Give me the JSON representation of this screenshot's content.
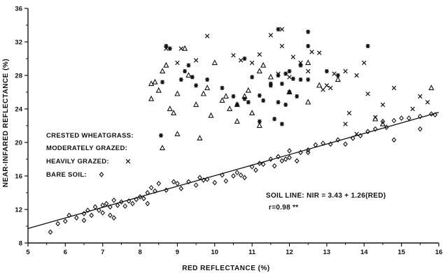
{
  "chart_data": {
    "type": "scatter",
    "xlabel": "RED REFLECTANCE (%)",
    "ylabel": "NEAR-INFARED REFLECTANCE (%)",
    "xlim": [
      5,
      16
    ],
    "ylim": [
      8,
      36
    ],
    "xticks": [
      "5",
      "6",
      "7",
      "8",
      "9",
      "10",
      "11",
      "12",
      "13",
      "14",
      "15",
      "16"
    ],
    "yticks": [
      "8",
      "12",
      "16",
      "20",
      "24",
      "28",
      "32",
      "36"
    ],
    "legend": [
      {
        "label": "CRESTED WHEATGRASS:",
        "marker": "asterisk"
      },
      {
        "label": "MODERATELY GRAZED:",
        "marker": "triangle"
      },
      {
        "label": "HEAVILY GRAZED:",
        "marker": "x"
      },
      {
        "label": "BARE SOIL:",
        "marker": "diamond"
      }
    ],
    "annotations": [
      "SOIL LINE: NIR = 3.43 + 1.26(RED)",
      "r=0.98 **"
    ],
    "fit_line": {
      "intercept": 3.43,
      "slope": 1.26,
      "x_range": [
        5,
        16
      ]
    },
    "series": [
      {
        "marker": "asterisk",
        "points": [
          [
            8.7,
            31.5
          ],
          [
            8.8,
            31.2
          ],
          [
            9.2,
            28.5
          ],
          [
            9.3,
            29.2
          ],
          [
            9.1,
            27.5
          ],
          [
            8.6,
            27.2
          ],
          [
            9.4,
            27.8
          ],
          [
            9.5,
            26.8
          ],
          [
            9.8,
            27.5
          ],
          [
            10.2,
            26.5
          ],
          [
            10.5,
            25.5
          ],
          [
            10.6,
            24.5
          ],
          [
            10.8,
            25.2
          ],
          [
            10.9,
            24.8
          ],
          [
            11.0,
            27.8
          ],
          [
            11.2,
            25.6
          ],
          [
            11.5,
            26.8
          ],
          [
            11.7,
            24.8
          ],
          [
            11.8,
            27.0
          ],
          [
            11.9,
            28.2
          ],
          [
            12.0,
            26.0
          ],
          [
            12.1,
            27.6
          ],
          [
            12.3,
            27.5
          ],
          [
            11.7,
            33.5
          ],
          [
            12.5,
            33.2
          ],
          [
            12.5,
            31.5
          ],
          [
            12.3,
            29.2
          ],
          [
            12.0,
            28.5
          ],
          [
            11.7,
            28.0
          ],
          [
            11.3,
            25.0
          ],
          [
            11.6,
            22.8
          ],
          [
            11.8,
            22.2
          ],
          [
            11.9,
            24.5
          ],
          [
            12.5,
            27.5
          ],
          [
            13.0,
            28.5
          ],
          [
            13.3,
            28.0
          ],
          [
            14.1,
            31.5
          ],
          [
            10.8,
            30.0
          ],
          [
            11.2,
            22.5
          ],
          [
            11.5,
            27.0
          ],
          [
            12.2,
            25.5
          ]
        ]
      },
      {
        "marker": "triangle",
        "points": [
          [
            8.3,
            27.0
          ],
          [
            8.3,
            25.2
          ],
          [
            8.4,
            27.2
          ],
          [
            8.5,
            26.2
          ],
          [
            8.6,
            28.5
          ],
          [
            8.7,
            29.2
          ],
          [
            8.8,
            24.0
          ],
          [
            8.9,
            23.5
          ],
          [
            9.0,
            25.8
          ],
          [
            9.0,
            21.0
          ],
          [
            9.2,
            31.2
          ],
          [
            9.5,
            24.5
          ],
          [
            9.6,
            20.5
          ],
          [
            9.7,
            25.8
          ],
          [
            9.8,
            26.5
          ],
          [
            9.9,
            23.2
          ],
          [
            10.0,
            29.5
          ],
          [
            10.2,
            25.0
          ],
          [
            10.3,
            25.5
          ],
          [
            10.4,
            24.0
          ],
          [
            10.6,
            24.5
          ],
          [
            10.8,
            25.5
          ],
          [
            10.9,
            26.2
          ],
          [
            11.0,
            23.5
          ],
          [
            11.2,
            28.5
          ],
          [
            11.3,
            29.2
          ],
          [
            11.5,
            27.8
          ],
          [
            12.0,
            26.0
          ],
          [
            12.5,
            29.5
          ],
          [
            12.8,
            26.8
          ],
          [
            13.3,
            27.5
          ],
          [
            14.3,
            22.8
          ],
          [
            14.5,
            22.2
          ],
          [
            15.8,
            26.5
          ],
          [
            11.2,
            22.0
          ],
          [
            12.5,
            24.8
          ],
          [
            9.3,
            28.0
          ],
          [
            10.6,
            22.5
          ]
        ]
      },
      {
        "marker": "x",
        "points": [
          [
            8.7,
            31.2
          ],
          [
            9.0,
            29.5
          ],
          [
            9.1,
            31.2
          ],
          [
            9.5,
            29.8
          ],
          [
            9.8,
            32.7
          ],
          [
            10.5,
            30.4
          ],
          [
            10.7,
            29.8
          ],
          [
            11.0,
            29.5
          ],
          [
            11.2,
            30.5
          ],
          [
            11.5,
            32.8
          ],
          [
            11.8,
            31.5
          ],
          [
            11.8,
            33.5
          ],
          [
            12.1,
            30.2
          ],
          [
            12.3,
            29.5
          ],
          [
            12.6,
            30.8
          ],
          [
            12.8,
            30.7
          ],
          [
            12.9,
            26.3
          ],
          [
            13.0,
            26.8
          ],
          [
            13.1,
            26.5
          ],
          [
            13.2,
            28.2
          ],
          [
            13.5,
            28.5
          ],
          [
            13.6,
            23.5
          ],
          [
            13.8,
            28.0
          ],
          [
            14.0,
            29.5
          ],
          [
            14.1,
            25.8
          ],
          [
            14.5,
            24.5
          ],
          [
            14.8,
            26.5
          ],
          [
            15.5,
            25.5
          ],
          [
            15.7,
            24.8
          ],
          [
            15.3,
            24.0
          ],
          [
            13.8,
            21.0
          ],
          [
            13.5,
            22.2
          ],
          [
            14.3,
            23.0
          ],
          [
            11.7,
            28.2
          ],
          [
            12.0,
            27.8
          ],
          [
            12.5,
            28.5
          ]
        ]
      },
      {
        "marker": "diamond",
        "points": [
          [
            5.6,
            9.3
          ],
          [
            5.8,
            10.3
          ],
          [
            6.0,
            10.6
          ],
          [
            6.1,
            11.3
          ],
          [
            6.3,
            11.0
          ],
          [
            6.5,
            11.5
          ],
          [
            6.5,
            10.7
          ],
          [
            6.6,
            11.9
          ],
          [
            6.7,
            11.3
          ],
          [
            6.8,
            12.3
          ],
          [
            6.9,
            11.9
          ],
          [
            7.0,
            12.5
          ],
          [
            7.0,
            11.6
          ],
          [
            7.1,
            12.7
          ],
          [
            7.2,
            12.3
          ],
          [
            7.3,
            13.1
          ],
          [
            7.3,
            11.0
          ],
          [
            7.4,
            12.5
          ],
          [
            7.5,
            12.9
          ],
          [
            7.6,
            12.4
          ],
          [
            7.7,
            13.0
          ],
          [
            7.8,
            12.7
          ],
          [
            7.9,
            13.2
          ],
          [
            8.0,
            13.5
          ],
          [
            8.1,
            13.3
          ],
          [
            8.2,
            14.0
          ],
          [
            8.3,
            14.6
          ],
          [
            8.4,
            14.2
          ],
          [
            8.5,
            15.1
          ],
          [
            8.7,
            14.3
          ],
          [
            8.9,
            15.3
          ],
          [
            9.0,
            15.1
          ],
          [
            9.1,
            14.5
          ],
          [
            9.3,
            15.3
          ],
          [
            9.5,
            14.9
          ],
          [
            9.6,
            15.8
          ],
          [
            9.8,
            15.6
          ],
          [
            10.0,
            15.2
          ],
          [
            10.2,
            16.1
          ],
          [
            10.3,
            15.4
          ],
          [
            10.6,
            16.4
          ],
          [
            10.7,
            16.1
          ],
          [
            10.8,
            15.8
          ],
          [
            11.0,
            17.1
          ],
          [
            11.1,
            16.7
          ],
          [
            11.3,
            17.4
          ],
          [
            11.5,
            18.0
          ],
          [
            11.6,
            17.2
          ],
          [
            11.7,
            18.3
          ],
          [
            11.8,
            17.8
          ],
          [
            11.9,
            18.0
          ],
          [
            12.0,
            18.2
          ],
          [
            12.2,
            17.8
          ],
          [
            12.3,
            18.8
          ],
          [
            12.5,
            19.1
          ],
          [
            12.7,
            19.7
          ],
          [
            12.9,
            19.9
          ],
          [
            13.1,
            19.8
          ],
          [
            13.3,
            20.3
          ],
          [
            13.5,
            19.8
          ],
          [
            13.7,
            20.5
          ],
          [
            13.9,
            20.8
          ],
          [
            14.1,
            21.3
          ],
          [
            14.3,
            21.6
          ],
          [
            14.5,
            22.5
          ],
          [
            14.6,
            21.8
          ],
          [
            14.8,
            22.6
          ],
          [
            15.0,
            22.9
          ],
          [
            15.2,
            22.9
          ],
          [
            15.5,
            23.1
          ],
          [
            15.8,
            23.4
          ],
          [
            15.9,
            23.3
          ],
          [
            14.8,
            20.3
          ],
          [
            15.5,
            21.6
          ],
          [
            10.5,
            16.0
          ],
          [
            9.7,
            15.5
          ],
          [
            12.0,
            19.0
          ],
          [
            11.2,
            17.5
          ],
          [
            12.5,
            18.8
          ],
          [
            8.2,
            12.7
          ],
          [
            7.2,
            11.3
          ]
        ]
      }
    ]
  }
}
